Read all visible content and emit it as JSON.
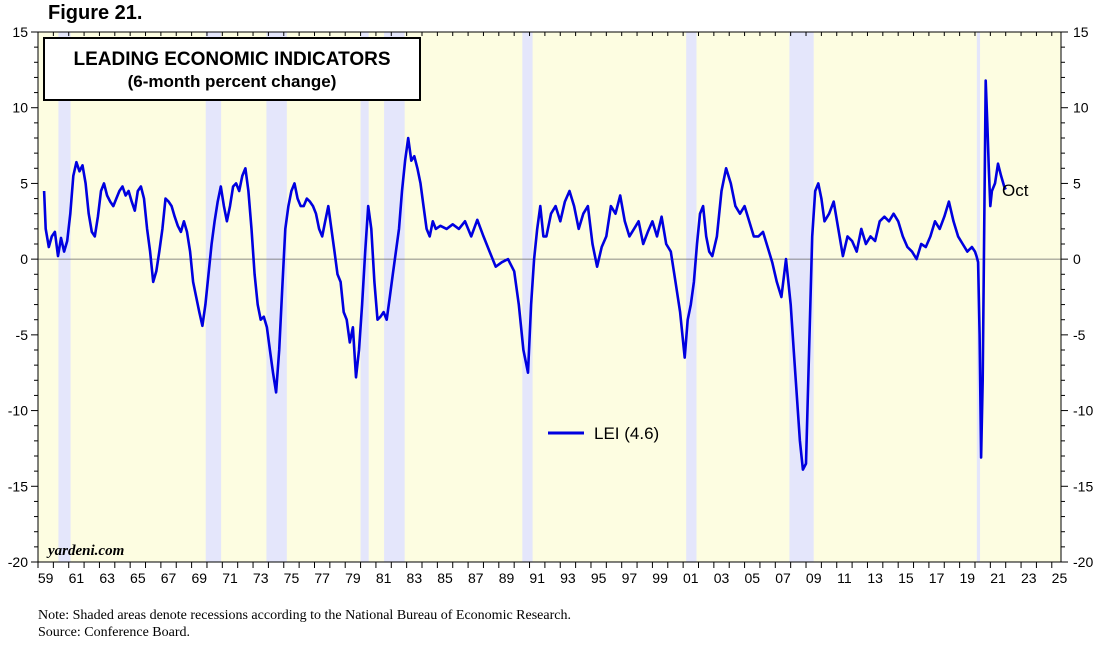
{
  "figure_label": "Figure 21.",
  "notes": {
    "line1": "Note: Shaded areas denote recessions according to the National Bureau of Economic Research.",
    "line2": "Source: Conference Board."
  },
  "chart_data": {
    "type": "line",
    "title": "LEADING ECONOMIC INDICATORS",
    "subtitle": "(6-month percent change)",
    "watermark": "yardeni.com",
    "end_label": "Oct",
    "ylim": [
      -20,
      15
    ],
    "y_ticks": [
      -20,
      -15,
      -10,
      -5,
      0,
      5,
      10,
      15
    ],
    "xlim": [
      1959,
      2025.6
    ],
    "x_tick_labels": [
      "59",
      "61",
      "63",
      "65",
      "67",
      "69",
      "71",
      "73",
      "75",
      "77",
      "79",
      "81",
      "83",
      "85",
      "87",
      "89",
      "91",
      "93",
      "95",
      "97",
      "99",
      "01",
      "03",
      "05",
      "07",
      "09",
      "11",
      "13",
      "15",
      "17",
      "19",
      "21",
      "23",
      "25"
    ],
    "recessions": [
      [
        1960.33,
        1961.12
      ],
      [
        1969.92,
        1970.92
      ],
      [
        1973.87,
        1975.2
      ],
      [
        1980.0,
        1980.53
      ],
      [
        1981.53,
        1982.87
      ],
      [
        1990.53,
        1991.2
      ],
      [
        2001.2,
        2001.87
      ],
      [
        2007.92,
        2009.5
      ],
      [
        2020.12,
        2020.33
      ]
    ],
    "colors": {
      "line": "#0000e0",
      "background": "#fdfde1",
      "recession": "#e4e6fb"
    },
    "series": [
      {
        "name": "LEI (4.6)",
        "x": [
          1959.4,
          1959.5,
          1959.7,
          1959.9,
          1960.1,
          1960.3,
          1960.5,
          1960.7,
          1960.9,
          1961.1,
          1961.3,
          1961.5,
          1961.7,
          1961.9,
          1962.1,
          1962.3,
          1962.5,
          1962.7,
          1962.9,
          1963.1,
          1963.3,
          1963.5,
          1963.7,
          1963.9,
          1964.1,
          1964.3,
          1964.5,
          1964.7,
          1964.9,
          1965.1,
          1965.3,
          1965.5,
          1965.7,
          1965.9,
          1966.1,
          1966.3,
          1966.5,
          1966.7,
          1966.9,
          1967.1,
          1967.3,
          1967.5,
          1967.7,
          1967.9,
          1968.1,
          1968.3,
          1968.5,
          1968.7,
          1968.9,
          1969.1,
          1969.3,
          1969.5,
          1969.7,
          1969.9,
          1970.1,
          1970.3,
          1970.5,
          1970.7,
          1970.9,
          1971.1,
          1971.3,
          1971.5,
          1971.7,
          1971.9,
          1972.1,
          1972.3,
          1972.5,
          1972.7,
          1972.9,
          1973.1,
          1973.3,
          1973.5,
          1973.7,
          1973.9,
          1974.1,
          1974.3,
          1974.5,
          1974.7,
          1974.9,
          1975.1,
          1975.3,
          1975.5,
          1975.7,
          1975.9,
          1976.1,
          1976.3,
          1976.5,
          1976.7,
          1976.9,
          1977.1,
          1977.3,
          1977.5,
          1977.7,
          1977.9,
          1978.1,
          1978.3,
          1978.5,
          1978.7,
          1978.9,
          1979.1,
          1979.3,
          1979.5,
          1979.7,
          1979.9,
          1980.1,
          1980.3,
          1980.5,
          1980.7,
          1980.9,
          1981.1,
          1981.3,
          1981.5,
          1981.7,
          1981.9,
          1982.1,
          1982.3,
          1982.5,
          1982.7,
          1982.9,
          1983.1,
          1983.3,
          1983.5,
          1983.7,
          1983.9,
          1984.1,
          1984.3,
          1984.5,
          1984.7,
          1984.9,
          1985.2,
          1985.6,
          1986.0,
          1986.4,
          1986.8,
          1987.2,
          1987.6,
          1988.0,
          1988.4,
          1988.8,
          1989.2,
          1989.6,
          1990.0,
          1990.3,
          1990.6,
          1990.9,
          1991.1,
          1991.3,
          1991.5,
          1991.7,
          1991.9,
          1992.1,
          1992.4,
          1992.7,
          1993.0,
          1993.3,
          1993.6,
          1993.9,
          1994.2,
          1994.5,
          1994.8,
          1995.1,
          1995.4,
          1995.7,
          1996.0,
          1996.3,
          1996.6,
          1996.9,
          1997.2,
          1997.5,
          1997.8,
          1998.1,
          1998.4,
          1998.7,
          1999.0,
          1999.3,
          1999.6,
          1999.9,
          2000.2,
          2000.5,
          2000.8,
          2001.1,
          2001.3,
          2001.5,
          2001.7,
          2001.9,
          2002.1,
          2002.3,
          2002.5,
          2002.7,
          2002.9,
          2003.2,
          2003.5,
          2003.8,
          2004.1,
          2004.4,
          2004.7,
          2005.0,
          2005.3,
          2005.6,
          2005.9,
          2006.2,
          2006.5,
          2006.8,
          2007.1,
          2007.4,
          2007.7,
          2008.0,
          2008.2,
          2008.4,
          2008.6,
          2008.8,
          2009.0,
          2009.2,
          2009.4,
          2009.6,
          2009.8,
          2010.0,
          2010.2,
          2010.5,
          2010.8,
          2011.1,
          2011.4,
          2011.7,
          2012.0,
          2012.3,
          2012.6,
          2012.9,
          2013.2,
          2013.5,
          2013.8,
          2014.1,
          2014.4,
          2014.7,
          2015.0,
          2015.3,
          2015.6,
          2015.9,
          2016.2,
          2016.5,
          2016.8,
          2017.1,
          2017.4,
          2017.7,
          2018.0,
          2018.3,
          2018.6,
          2018.9,
          2019.2,
          2019.5,
          2019.8,
          2020.0,
          2020.1,
          2020.2,
          2020.3,
          2020.4,
          2020.5,
          2020.6,
          2020.7,
          2020.8,
          2020.9,
          2021.0,
          2021.1,
          2021.3,
          2021.5,
          2021.7,
          2021.9,
          2022.0
        ],
        "values": [
          4.5,
          2.0,
          0.8,
          1.5,
          1.8,
          0.2,
          1.4,
          0.5,
          1.2,
          3.0,
          5.5,
          6.4,
          5.8,
          6.2,
          5.0,
          3.0,
          1.8,
          1.5,
          2.8,
          4.5,
          5.0,
          4.2,
          3.8,
          3.5,
          4.0,
          4.5,
          4.8,
          4.2,
          4.5,
          3.8,
          3.2,
          4.5,
          4.8,
          4.0,
          2.0,
          0.5,
          -1.5,
          -0.8,
          0.5,
          2.0,
          4.0,
          3.8,
          3.5,
          2.8,
          2.2,
          1.8,
          2.5,
          1.8,
          0.5,
          -1.5,
          -2.5,
          -3.5,
          -4.4,
          -3.0,
          -1.0,
          1.0,
          2.5,
          3.8,
          4.8,
          3.5,
          2.5,
          3.5,
          4.8,
          5.0,
          4.5,
          5.5,
          6.0,
          4.5,
          2.0,
          -1.0,
          -3.0,
          -4.0,
          -3.8,
          -4.5,
          -6.0,
          -7.5,
          -8.8,
          -6.0,
          -2.0,
          2.0,
          3.5,
          4.5,
          5.0,
          4.0,
          3.5,
          3.5,
          4.0,
          3.8,
          3.5,
          3.0,
          2.0,
          1.5,
          2.5,
          3.5,
          2.0,
          0.5,
          -1.0,
          -1.5,
          -3.5,
          -4.0,
          -5.5,
          -4.5,
          -7.8,
          -6.0,
          -3.0,
          0.5,
          3.5,
          2.0,
          -1.5,
          -4.0,
          -3.8,
          -3.5,
          -4.0,
          -2.5,
          -1.0,
          0.5,
          2.0,
          4.5,
          6.5,
          8.0,
          6.5,
          6.8,
          6.0,
          5.0,
          3.5,
          2.0,
          1.5,
          2.5,
          2.0,
          2.2,
          2.0,
          2.3,
          2.0,
          2.5,
          1.5,
          2.6,
          1.5,
          0.5,
          -0.5,
          -0.2,
          0.0,
          -0.8,
          -3.0,
          -6.0,
          -7.5,
          -3.0,
          0.0,
          2.0,
          3.5,
          1.5,
          1.5,
          3.0,
          3.5,
          2.5,
          3.8,
          4.5,
          3.5,
          2.0,
          3.0,
          3.5,
          1.0,
          -0.5,
          0.8,
          1.5,
          3.5,
          3.0,
          4.2,
          2.5,
          1.5,
          2.0,
          2.5,
          1.0,
          1.8,
          2.5,
          1.5,
          2.8,
          1.0,
          0.5,
          -1.5,
          -3.5,
          -6.5,
          -4.0,
          -3.0,
          -1.5,
          1.0,
          3.0,
          3.5,
          1.5,
          0.5,
          0.2,
          1.5,
          4.5,
          6.0,
          5.0,
          3.5,
          3.0,
          3.5,
          2.5,
          1.5,
          1.5,
          1.8,
          0.8,
          -0.2,
          -1.5,
          -2.5,
          0.0,
          -3.0,
          -6.0,
          -9.0,
          -12.0,
          -13.9,
          -13.5,
          -6.0,
          1.5,
          4.5,
          5.0,
          4.0,
          2.5,
          3.0,
          3.8,
          2.0,
          0.2,
          1.5,
          1.2,
          0.5,
          2.0,
          1.0,
          1.5,
          1.2,
          2.5,
          2.8,
          2.5,
          3.0,
          2.5,
          1.5,
          0.8,
          0.5,
          0.0,
          1.0,
          0.8,
          1.5,
          2.5,
          2.0,
          2.8,
          3.8,
          2.5,
          1.5,
          1.0,
          0.5,
          0.8,
          0.5,
          0.2,
          -0.2,
          -5.0,
          -13.1,
          -8.0,
          2.0,
          11.8,
          9.0,
          6.0,
          3.5,
          4.5,
          5.0,
          6.3,
          5.5,
          4.8,
          4.6
        ]
      }
    ]
  }
}
